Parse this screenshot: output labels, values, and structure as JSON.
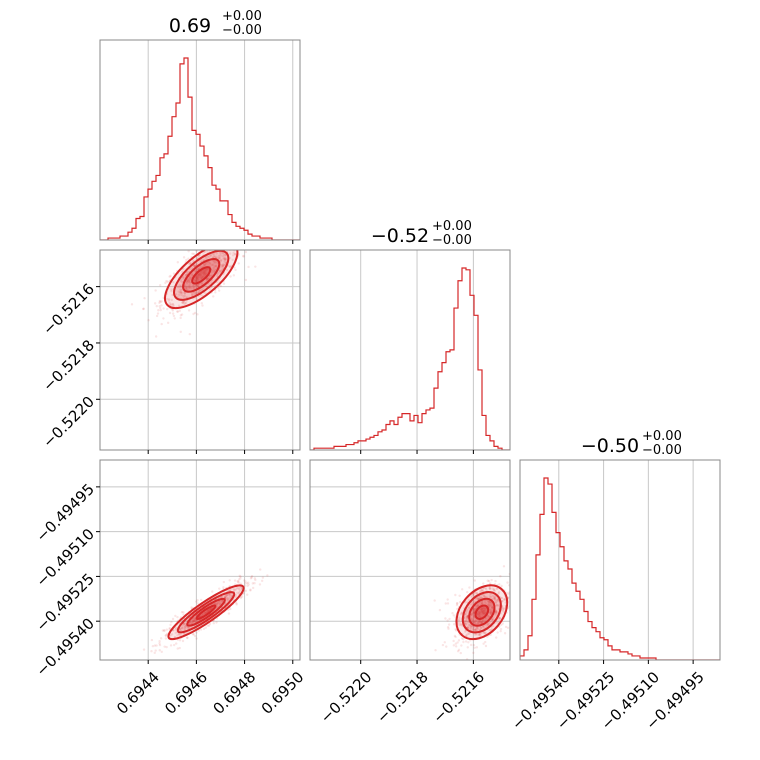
{
  "chart_data": {
    "type": "corner",
    "color": "#d62728",
    "grid": true,
    "parameters": [
      {
        "title_value": "0.69",
        "title_plus": "+0.00",
        "title_minus": "−0.00",
        "range": [
          0.6942,
          0.69503
        ],
        "ticks": [
          0.6944,
          0.6946,
          0.6948,
          0.695
        ],
        "tick_labels": [
          "0.6944",
          "0.6946",
          "0.6948",
          "0.6950"
        ]
      },
      {
        "title_value": "−0.52",
        "title_plus": "+0.00",
        "title_minus": "−0.00",
        "range": [
          -0.52218,
          -0.52147
        ],
        "ticks": [
          -0.522,
          -0.5218,
          -0.5216
        ],
        "tick_labels": [
          "−0.5220",
          "−0.5218",
          "−0.5216"
        ]
      },
      {
        "title_value": "−0.50",
        "title_plus": "+0.00",
        "title_minus": "−0.00",
        "range": [
          -0.49553,
          -0.49486
        ],
        "ticks": [
          -0.4954,
          -0.49525,
          -0.4951,
          -0.49495
        ],
        "tick_labels": [
          "−0.49540",
          "−0.49525",
          "−0.49510",
          "−0.49495"
        ]
      }
    ],
    "histograms": [
      {
        "param": 0,
        "x_start": 0.6942,
        "bin_width": 1.66e-05,
        "counts": [
          0,
          0,
          0.01,
          0.01,
          0.01,
          0.02,
          0.02,
          0.04,
          0.06,
          0.11,
          0.12,
          0.22,
          0.26,
          0.3,
          0.33,
          0.42,
          0.44,
          0.53,
          0.63,
          0.7,
          0.9,
          0.93,
          0.73,
          0.56,
          0.54,
          0.48,
          0.43,
          0.37,
          0.28,
          0.26,
          0.2,
          0.2,
          0.13,
          0.09,
          0.07,
          0.06,
          0.05,
          0.03,
          0.02,
          0.02,
          0.01,
          0.01,
          0.01,
          0.0,
          0.0,
          0.0,
          0.0,
          0.0,
          0.0,
          0.0
        ]
      },
      {
        "param": 1,
        "x_start": -0.52218,
        "bin_width": 1.42e-05,
        "counts": [
          0,
          0.01,
          0.01,
          0.01,
          0.01,
          0.01,
          0.02,
          0.02,
          0.02,
          0.03,
          0.03,
          0.04,
          0.05,
          0.05,
          0.06,
          0.07,
          0.08,
          0.1,
          0.11,
          0.14,
          0.16,
          0.14,
          0.18,
          0.2,
          0.2,
          0.16,
          0.19,
          0.15,
          0.2,
          0.22,
          0.23,
          0.34,
          0.43,
          0.48,
          0.54,
          0.55,
          0.78,
          0.93,
          1.0,
          0.99,
          0.85,
          0.74,
          0.44,
          0.19,
          0.08,
          0.05,
          0.02,
          0.01,
          0.0,
          0.0
        ]
      },
      {
        "param": 2,
        "x_start": -0.49553,
        "bin_width": 1.34e-05,
        "counts": [
          0.02,
          0.05,
          0.12,
          0.3,
          0.52,
          0.72,
          0.9,
          0.87,
          0.73,
          0.63,
          0.56,
          0.49,
          0.45,
          0.38,
          0.34,
          0.3,
          0.24,
          0.19,
          0.16,
          0.14,
          0.11,
          0.1,
          0.07,
          0.05,
          0.05,
          0.04,
          0.04,
          0.03,
          0.02,
          0.02,
          0.01,
          0.01,
          0.01,
          0.01,
          0.0,
          0.0,
          0.0,
          0.0,
          0.0,
          0.0,
          0.0,
          0.0,
          0.0,
          0.0,
          0.0,
          0.0,
          0.0,
          0.0,
          0.0,
          0.0
        ]
      }
    ],
    "joint": [
      {
        "x_param": 0,
        "y_param": 1,
        "mean": [
          0.69462,
          -0.52156
        ],
        "sd": [
          7.5e-05,
          5.8e-05
        ],
        "rho": 0.7
      },
      {
        "x_param": 0,
        "y_param": 2,
        "mean": [
          0.69464,
          -0.49537
        ],
        "sd": [
          7.8e-05,
          4.5e-05
        ],
        "rho": 0.9
      },
      {
        "x_param": 1,
        "y_param": 2,
        "mean": [
          -0.52157,
          -0.49537
        ],
        "sd": [
          4.5e-05,
          4.5e-05
        ],
        "rho": 0.35
      }
    ]
  }
}
